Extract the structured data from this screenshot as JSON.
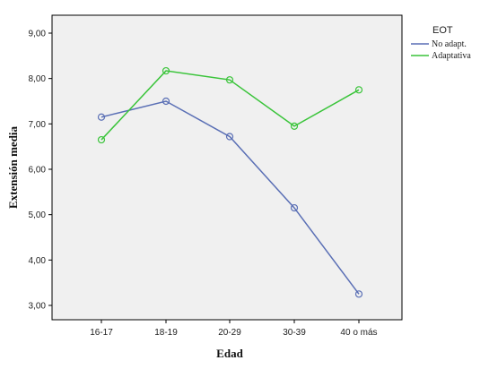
{
  "chart_data": {
    "type": "line",
    "xlabel": "Edad",
    "ylabel": "Extensión media",
    "categories": [
      "16-17",
      "18-19",
      "20-29",
      "30-39",
      "40 o más"
    ],
    "ylim": [
      2.9,
      9.5
    ],
    "yticks": [
      "3,00",
      "4,00",
      "5,00",
      "6,00",
      "7,00",
      "8,00",
      "9,00"
    ],
    "ytick_values": [
      3,
      4,
      5,
      6,
      7,
      8,
      9
    ],
    "legend": {
      "title": "EOT",
      "placement": "right"
    },
    "grid": false,
    "series": [
      {
        "name": "No adapt.",
        "color": "#5a6fb5",
        "values": [
          7.15,
          7.5,
          6.72,
          5.15,
          3.25
        ]
      },
      {
        "name": "Adaptativa",
        "color": "#3ac43a",
        "values": [
          6.65,
          8.17,
          7.97,
          6.95,
          7.75
        ]
      }
    ]
  }
}
